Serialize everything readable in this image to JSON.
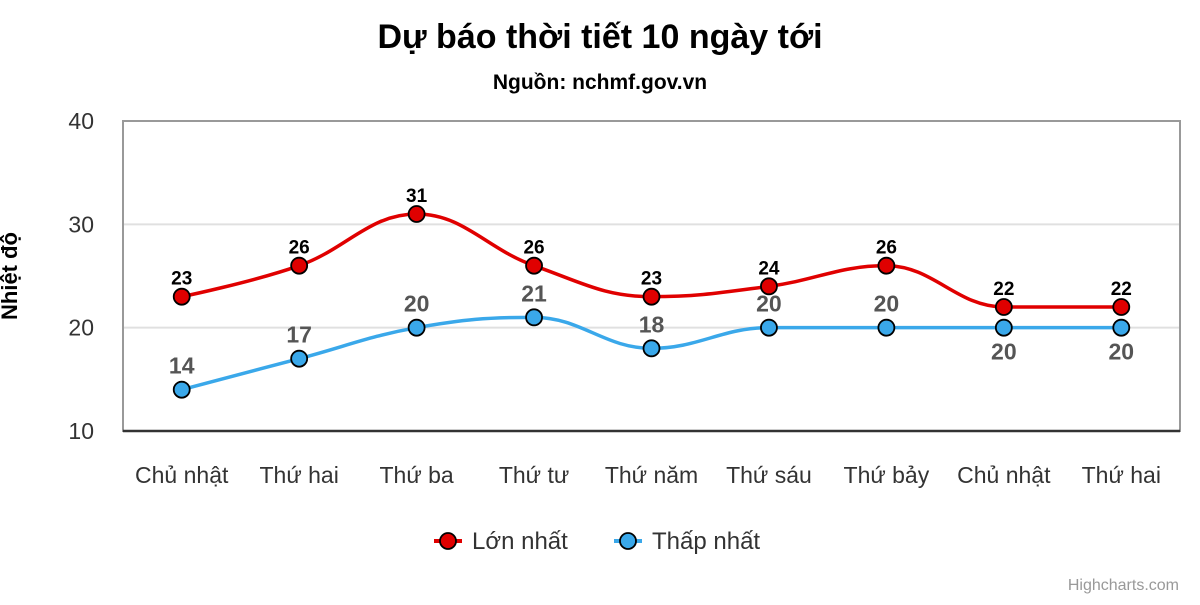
{
  "chart_data": {
    "type": "line",
    "title": "Dự báo thời tiết 10 ngày tới",
    "subtitle": "Nguồn: nchmf.gov.vn",
    "ylabel": "Nhiệt độ",
    "xlabel": "",
    "ylim": [
      10,
      40
    ],
    "yticks": [
      "10",
      "20",
      "30",
      "40"
    ],
    "grid": true,
    "legend_position": "bottom",
    "categories": [
      "Chủ nhật",
      "Thứ hai",
      "Thứ ba",
      "Thứ tư",
      "Thứ năm",
      "Thứ sáu",
      "Thứ bảy",
      "Chủ nhật",
      "Thứ hai"
    ],
    "series": [
      {
        "name": "Lớn nhất",
        "color": "#e00000",
        "label_color": "#000000",
        "values": [
          23,
          26,
          31,
          26,
          23,
          24,
          26,
          22,
          22
        ]
      },
      {
        "name": "Thấp nhất",
        "color": "#3aa8ea",
        "label_color": "#555555",
        "values": [
          14,
          17,
          20,
          21,
          18,
          20,
          20,
          20,
          20
        ]
      }
    ],
    "credits": "Highcharts.com"
  }
}
